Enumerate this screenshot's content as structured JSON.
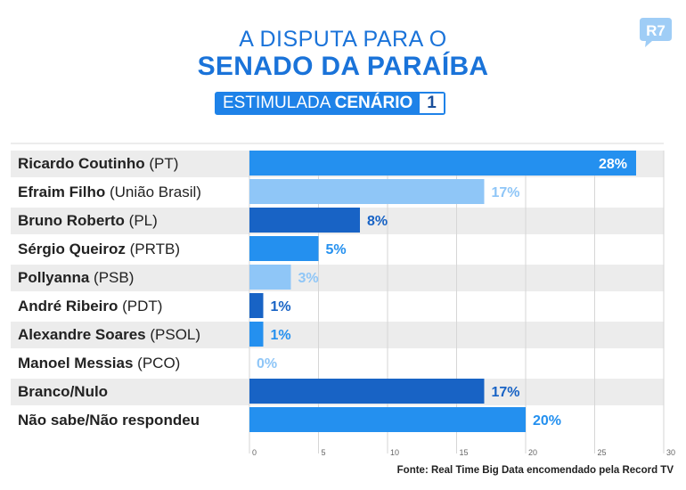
{
  "header": {
    "title_line1": "A DISPUTA PARA O",
    "title_line2": "SENADO DA PARAÍBA",
    "badge_light": "ESTIMULADA",
    "badge_bold": "CENÁRIO",
    "badge_number": "1",
    "logo_text": "R7"
  },
  "source": "Fonte: Real Time Big Data encomendado pela Record TV",
  "colors": {
    "brand": "#1a73d9",
    "bar_medium": "#2490ef",
    "bar_light": "#8fc6f7",
    "bar_dark": "#1863c5",
    "row_shade": "#ececec",
    "logo": "#9fcdf6"
  },
  "chart_data": {
    "type": "bar",
    "orientation": "horizontal",
    "categories": [
      "Ricardo Coutinho (PT)",
      "Efraim Filho (União Brasil)",
      "Bruno Roberto (PL)",
      "Sérgio Queiroz (PRTB)",
      "Pollyanna (PSB)",
      "André Ribeiro (PDT)",
      "Alexandre Soares (PSOL)",
      "Manoel Messias (PCO)",
      "Branco/Nulo",
      "Não sabe/Não respondeu"
    ],
    "names": [
      "Ricardo Coutinho",
      "Efraim Filho",
      "Bruno Roberto",
      "Sérgio Queiroz",
      "Pollyanna",
      "André Ribeiro",
      "Alexandre Soares",
      "Manoel Messias",
      "Branco/Nulo",
      "Não sabe/Não respondeu"
    ],
    "parties": [
      "(PT)",
      "(União Brasil)",
      "(PL)",
      "(PRTB)",
      "(PSB)",
      "(PDT)",
      "(PSOL)",
      "(PCO)",
      "",
      ""
    ],
    "values": [
      28,
      17,
      8,
      5,
      3,
      1,
      1,
      0,
      17,
      20
    ],
    "value_labels": [
      "28%",
      "17%",
      "8%",
      "5%",
      "3%",
      "1%",
      "1%",
      "0%",
      "17%",
      "20%"
    ],
    "bar_colors": [
      "#2490ef",
      "#8fc6f7",
      "#1863c5",
      "#2490ef",
      "#8fc6f7",
      "#1863c5",
      "#2490ef",
      "#8fc6f7",
      "#1863c5",
      "#2490ef"
    ],
    "label_inside": [
      true,
      false,
      false,
      false,
      false,
      false,
      false,
      false,
      false,
      false
    ],
    "xlim": [
      0,
      30
    ],
    "xticks": [
      0,
      5,
      10,
      15,
      20,
      25,
      30
    ],
    "grid": true,
    "title": "A DISPUTA PARA O SENADO DA PARAÍBA",
    "xlabel": "",
    "ylabel": ""
  }
}
